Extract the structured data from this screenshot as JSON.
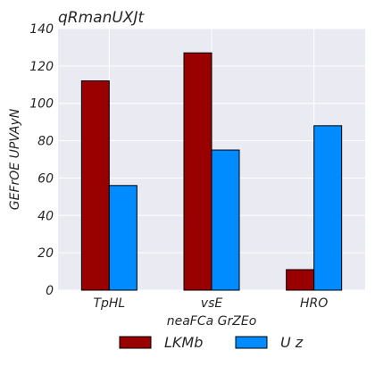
{
  "chart_data": {
    "type": "bar",
    "title": "qRmanUXJt",
    "xlabel": "neaFCa GrZEo",
    "ylabel": "GEFrOE UPVAyN",
    "categories": [
      "TpHL",
      "vsE",
      "HRO"
    ],
    "series": [
      {
        "name": "LKMb",
        "values": [
          112,
          127,
          11
        ],
        "color": "#990000"
      },
      {
        "name": "U z",
        "values": [
          56,
          75,
          88
        ],
        "color": "#008cff"
      }
    ],
    "ylim": [
      0,
      140
    ],
    "yticks": [
      0,
      20,
      40,
      60,
      80,
      100,
      120,
      140
    ],
    "grid": true,
    "legend_position": "bottom-center",
    "background": "#eaeaf2"
  }
}
